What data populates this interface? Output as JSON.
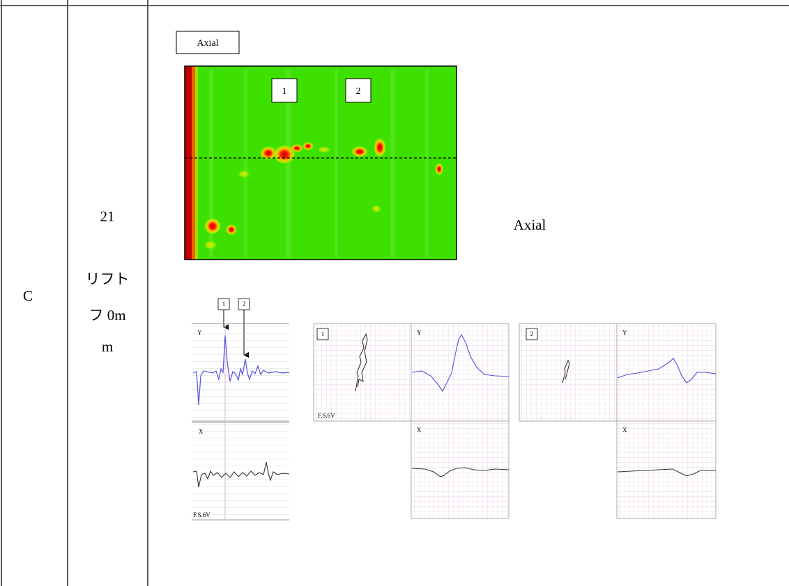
{
  "table": {
    "row": {
      "label": "C",
      "condition": [
        "21",
        "リフト",
        "フ 0m",
        "m"
      ],
      "content": {
        "axial_tag": "Axial",
        "markers": [
          "1",
          "2"
        ],
        "side_label": "Axial",
        "strip_chart": {
          "markers": [
            "1",
            "2"
          ],
          "y_label": "Y",
          "x_label": "X",
          "scale": "F.S.6V"
        },
        "lissajous": [
          {
            "marker": "1",
            "scale": "F.S.6V",
            "y_label": "Y",
            "x_label": "X"
          },
          {
            "marker": "2",
            "y_label": "Y",
            "x_label": "X"
          }
        ]
      }
    }
  }
}
